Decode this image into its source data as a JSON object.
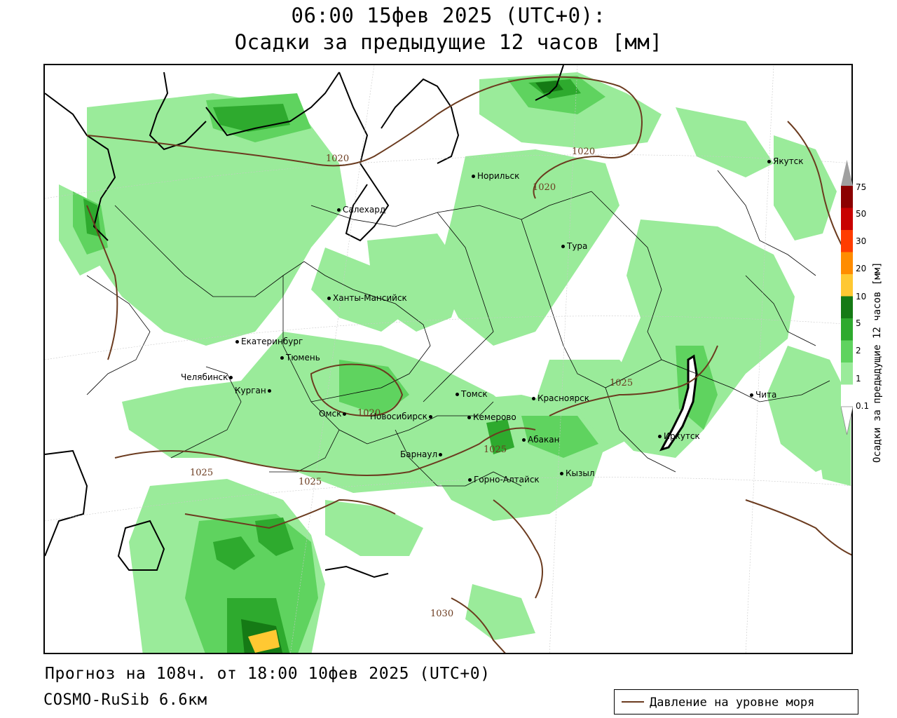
{
  "title": {
    "line1": "06:00 15фев 2025 (UTC+0):",
    "line2": "Осадки за предыдущие 12 часов [мм]"
  },
  "cities": [
    {
      "name": "Якутск"
    },
    {
      "name": "Норильск"
    },
    {
      "name": "Салехард"
    },
    {
      "name": "Тура"
    },
    {
      "name": "Ханты-Мансийск"
    },
    {
      "name": "Екатеринбург"
    },
    {
      "name": "Тюмень"
    },
    {
      "name": "Челябинск"
    },
    {
      "name": "Курган"
    },
    {
      "name": "Омск"
    },
    {
      "name": "Новосибирск"
    },
    {
      "name": "Томск"
    },
    {
      "name": "Кемерово"
    },
    {
      "name": "Красноярск"
    },
    {
      "name": "Барнаул"
    },
    {
      "name": "Абакан"
    },
    {
      "name": "Горно-Алтайск"
    },
    {
      "name": "Кызыл"
    },
    {
      "name": "Иркутск"
    },
    {
      "name": "Чита"
    }
  ],
  "isobar_labels": [
    "1020",
    "1020",
    "1020",
    "1020",
    "1025",
    "1025",
    "1025",
    "1025",
    "1030"
  ],
  "colorbar": {
    "title": "Осадки за предыдущие 12 часов [мм]",
    "levels": [
      "75",
      "50",
      "30",
      "20",
      "10",
      "5",
      "2",
      "1",
      "0.1"
    ],
    "colors": [
      "#8b0000",
      "#c80000",
      "#ff3c00",
      "#ff8c00",
      "#ffc832",
      "#157a15",
      "#2eaa2e",
      "#5fd35f",
      "#9aeb9a",
      "#ffffff"
    ]
  },
  "footer": {
    "forecast": "Прогноз на 108ч. от 18:00 10фев 2025 (UTC+0)",
    "model": "COSMO-RuSib 6.6км"
  },
  "key": {
    "label": "Давление на уровне моря",
    "color": "#6b3b1f"
  }
}
